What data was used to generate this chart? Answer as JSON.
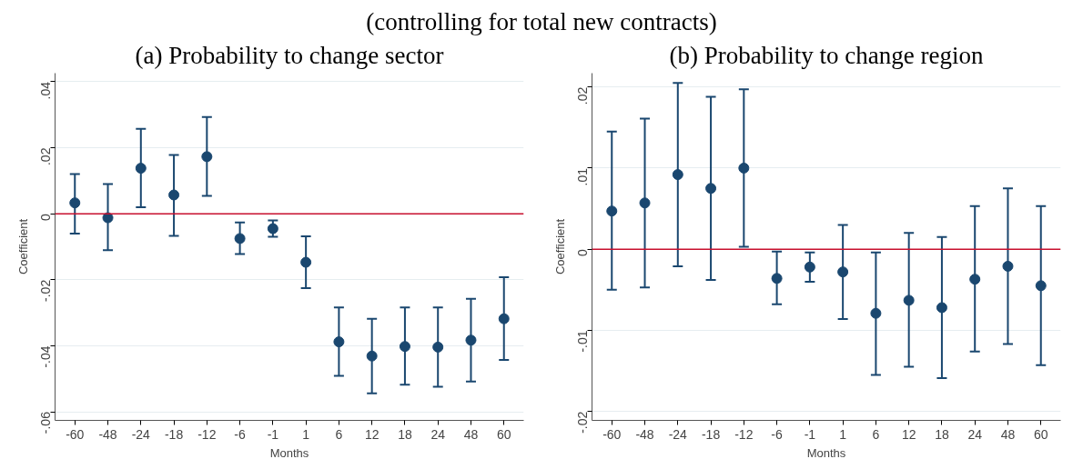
{
  "chart_data": [
    {
      "type": "scatter",
      "title": "(a) Probability to change sector",
      "annotations": [
        "(controlling for total new contracts)"
      ],
      "xlabel": "Months",
      "ylabel": "Coefficient",
      "categories": [
        "-60",
        "-48",
        "-24",
        "-18",
        "-12",
        "-6",
        "-1",
        "1",
        "6",
        "12",
        "18",
        "24",
        "48",
        "60"
      ],
      "series": [
        {
          "color": "#1a476f",
          "values": [
            0.0033,
            -0.0012,
            0.0138,
            0.0057,
            0.0173,
            -0.0075,
            -0.0045,
            -0.0147,
            -0.0388,
            -0.0431,
            -0.0402,
            -0.0404,
            -0.0383,
            -0.0318
          ],
          "errors": [
            [
              -0.006,
              0.012
            ],
            [
              -0.011,
              0.009
            ],
            [
              0.002,
              0.0257
            ],
            [
              -0.0067,
              0.0178
            ],
            [
              0.0054,
              0.0293
            ],
            [
              -0.0122,
              -0.0026
            ],
            [
              -0.007,
              -0.002
            ],
            [
              -0.0225,
              -0.0068
            ],
            [
              -0.0491,
              -0.0284
            ],
            [
              -0.0544,
              -0.0318
            ],
            [
              -0.0518,
              -0.0284
            ],
            [
              -0.0524,
              -0.0284
            ],
            [
              -0.0508,
              -0.0258
            ],
            [
              -0.0443,
              -0.0192
            ]
          ]
        }
      ],
      "ylim": [
        -0.0626,
        0.0426
      ],
      "yticks": [
        {
          "value": -0.06,
          "label": "-.06"
        },
        {
          "value": -0.04,
          "label": "-.04"
        },
        {
          "value": -0.02,
          "label": "-.02"
        },
        0,
        {
          "value": 0.02,
          "label": ".02"
        },
        {
          "value": 0.04,
          "label": ".04"
        }
      ],
      "ref_lines": [
        {
          "axis": "y",
          "value": 0,
          "color": "#c8102e"
        }
      ],
      "grid": "y",
      "marker": "circle"
    },
    {
      "type": "scatter",
      "title": "(b) Probability to change region",
      "xlabel": "Months",
      "ylabel": "Coefficient",
      "categories": [
        "-60",
        "-48",
        "-24",
        "-18",
        "-12",
        "-6",
        "-1",
        "1",
        "6",
        "12",
        "18",
        "24",
        "48",
        "60"
      ],
      "series": [
        {
          "color": "#1a476f",
          "values": [
            0.0047,
            0.0057,
            0.0092,
            0.0075,
            0.01,
            -0.0036,
            -0.0022,
            -0.0028,
            -0.0079,
            -0.0063,
            -0.0072,
            -0.0037,
            -0.0021,
            -0.0045
          ],
          "errors": [
            [
              -0.005,
              0.0145
            ],
            [
              -0.0047,
              0.0161
            ],
            [
              -0.0021,
              0.0205
            ],
            [
              -0.0038,
              0.0188
            ],
            [
              0.0003,
              0.0197
            ],
            [
              -0.0068,
              -0.0003
            ],
            [
              -0.004,
              -0.0004
            ],
            [
              -0.0086,
              0.003
            ],
            [
              -0.0155,
              -0.0004
            ],
            [
              -0.0145,
              0.002
            ],
            [
              -0.0159,
              0.0015
            ],
            [
              -0.0126,
              0.0053
            ],
            [
              -0.0117,
              0.0075
            ],
            [
              -0.0143,
              0.0053
            ]
          ]
        }
      ],
      "ylim": [
        -0.0211,
        0.0217
      ],
      "yticks": [
        {
          "value": -0.02,
          "label": "-.02"
        },
        {
          "value": -0.01,
          "label": "-.01"
        },
        0,
        {
          "value": 0.01,
          "label": ".01"
        },
        {
          "value": 0.02,
          "label": ".02"
        }
      ],
      "ref_lines": [
        {
          "axis": "y",
          "value": 0,
          "color": "#c8102e"
        }
      ],
      "grid": "y",
      "marker": "circle"
    }
  ]
}
